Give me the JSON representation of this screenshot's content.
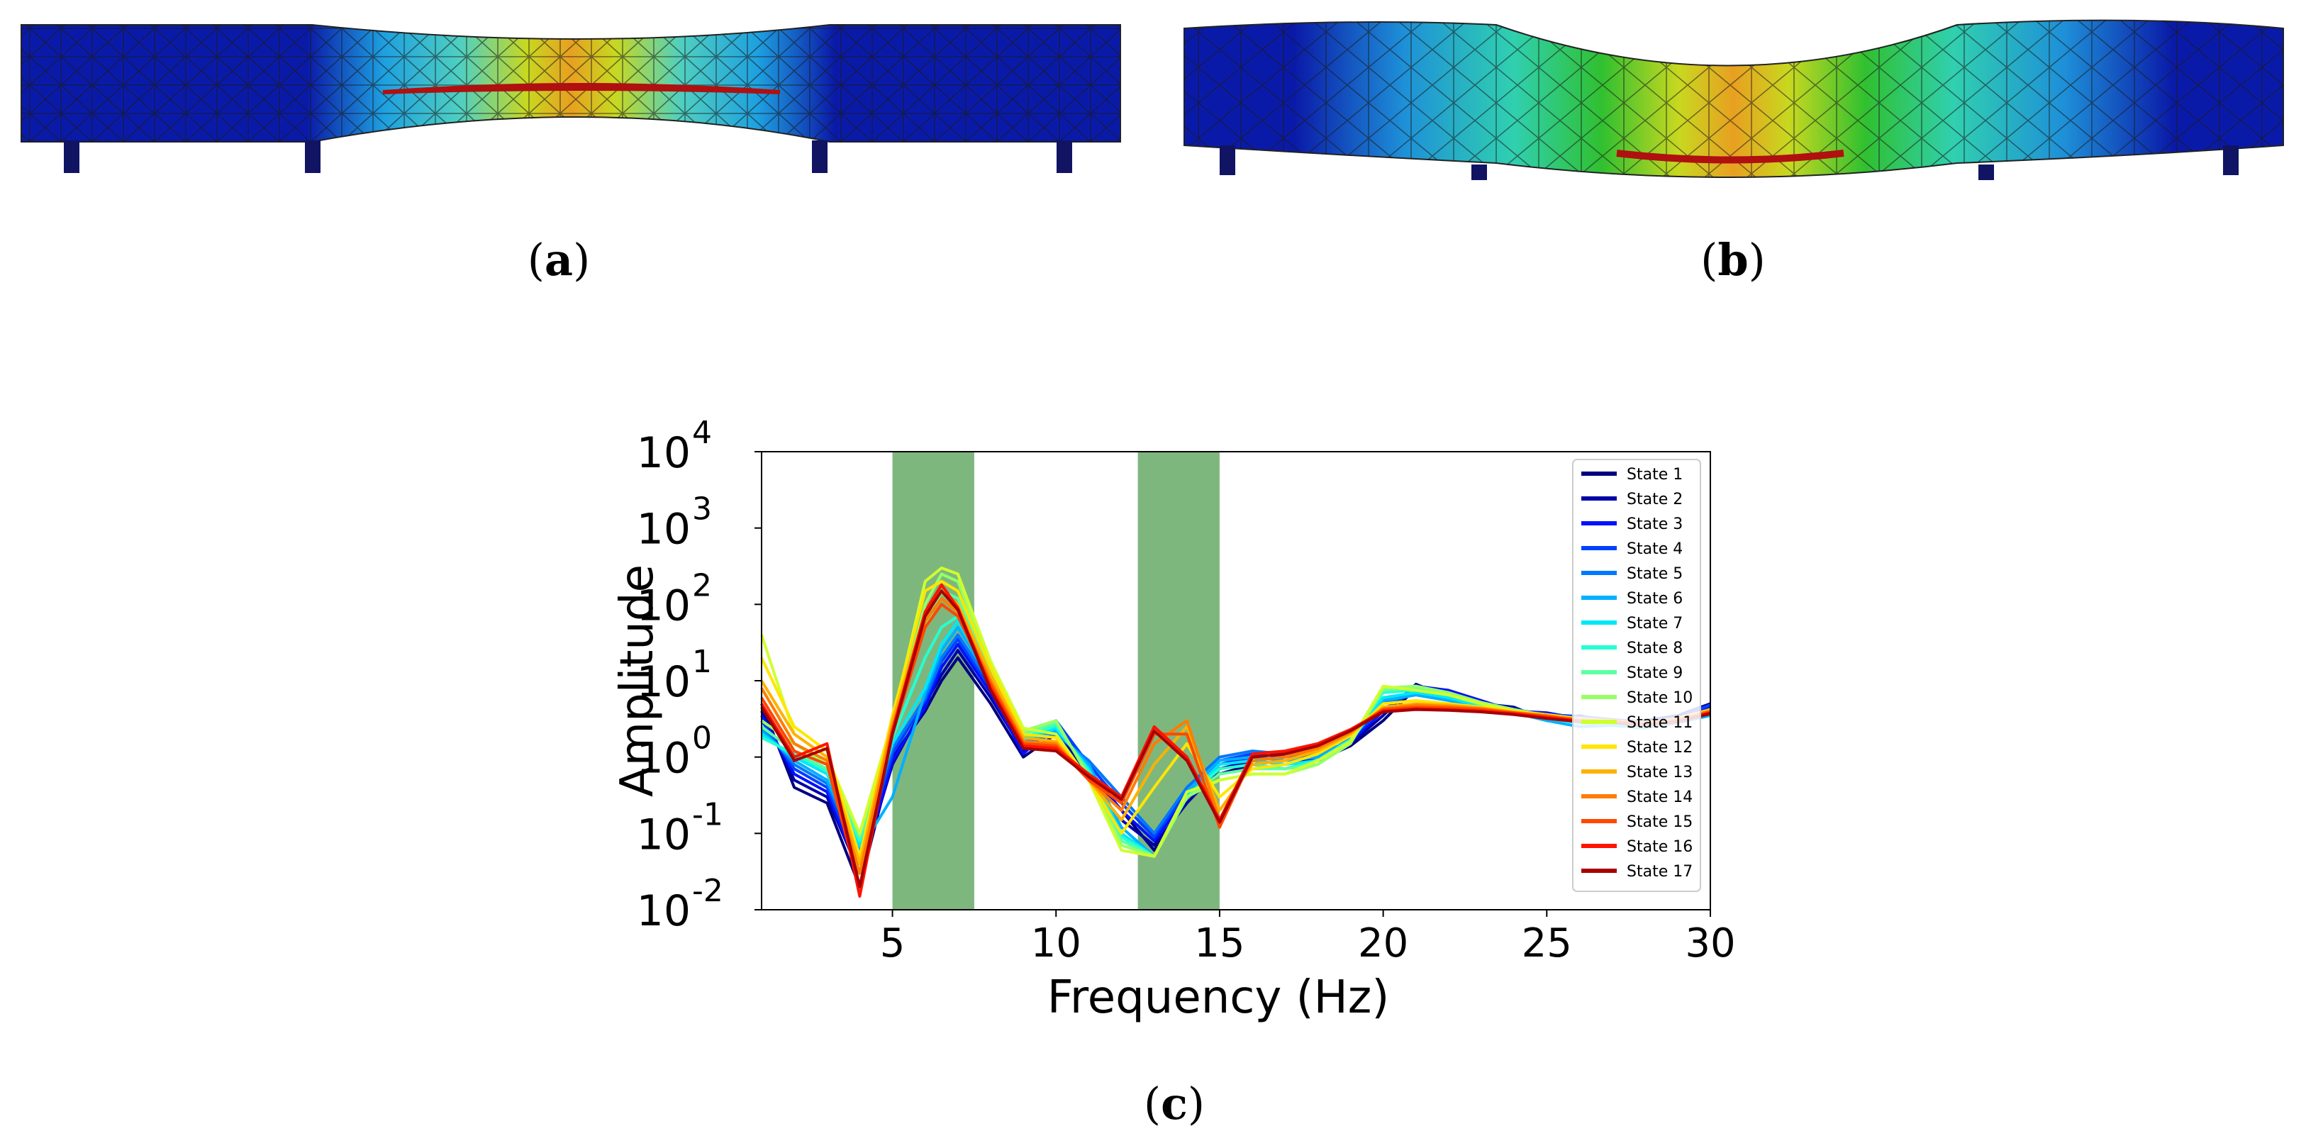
{
  "figure": {
    "panel_a_label_letter": "a",
    "panel_b_label_letter": "b",
    "panel_c_label_letter": "c",
    "open_paren": "(",
    "close_paren": ")"
  },
  "colors": {
    "beam_blue": "#0a1aa8",
    "support_navy": "#101463",
    "shade_green": "#2e8b2e",
    "mesh_line": "#1a1a1a"
  },
  "chart_data": {
    "type": "line",
    "xlabel": "Frequency (Hz)",
    "ylabel": "Amplitude",
    "y_scale": "log",
    "xlim": [
      1,
      30
    ],
    "ylim": [
      0.01,
      10000
    ],
    "xticks": [
      5,
      10,
      15,
      20,
      25,
      30
    ],
    "yticks": [
      {
        "value": 0.01,
        "base": "10",
        "exp": "-2"
      },
      {
        "value": 0.1,
        "base": "10",
        "exp": "-1"
      },
      {
        "value": 1,
        "base": "10",
        "exp": "0"
      },
      {
        "value": 10,
        "base": "10",
        "exp": "1"
      },
      {
        "value": 100,
        "base": "10",
        "exp": "2"
      },
      {
        "value": 1000,
        "base": "10",
        "exp": "3"
      },
      {
        "value": 10000,
        "base": "10",
        "exp": "4"
      }
    ],
    "shaded_bands": [
      [
        5,
        7.5
      ],
      [
        12.5,
        15
      ]
    ],
    "legend_position": "right",
    "x": [
      1,
      2,
      3,
      4,
      5,
      6,
      6.5,
      7,
      8,
      9,
      10,
      11,
      12,
      13,
      14,
      15,
      16,
      17,
      18,
      19,
      20,
      21,
      22,
      23,
      24,
      25,
      26,
      27,
      28,
      29,
      30
    ],
    "series": [
      {
        "name": "State 1",
        "color": "#00007f",
        "values": [
          5.0,
          0.4,
          0.25,
          0.02,
          1.0,
          4.0,
          10.0,
          20.0,
          5.0,
          1.0,
          2.0,
          0.6,
          0.2,
          0.06,
          0.3,
          0.6,
          0.8,
          0.7,
          0.9,
          1.4,
          3.0,
          8.0,
          7.0,
          5.0,
          4.0,
          3.5,
          3.0,
          3.0,
          2.5,
          3.0,
          4.0
        ]
      },
      {
        "name": "State 2",
        "color": "#0000a8",
        "values": [
          4.0,
          0.5,
          0.3,
          0.03,
          0.8,
          5.0,
          12.0,
          25.0,
          6.0,
          1.2,
          2.5,
          0.5,
          0.15,
          0.07,
          0.25,
          0.7,
          0.9,
          0.8,
          1.0,
          1.5,
          3.5,
          9.0,
          6.0,
          5.0,
          4.5,
          3.0,
          3.5,
          2.8,
          3.0,
          3.5,
          5.0
        ]
      },
      {
        "name": "State 3",
        "color": "#0010ff",
        "values": [
          3.5,
          0.6,
          0.35,
          0.03,
          0.9,
          4.5,
          15.0,
          30.0,
          7.0,
          1.1,
          2.8,
          0.7,
          0.2,
          0.08,
          0.3,
          0.8,
          1.0,
          0.9,
          1.1,
          1.6,
          4.0,
          8.5,
          7.5,
          5.5,
          4.0,
          3.8,
          3.2,
          3.0,
          2.7,
          3.2,
          4.5
        ]
      },
      {
        "name": "State 4",
        "color": "#0040ff",
        "values": [
          3.0,
          0.7,
          0.4,
          0.04,
          1.1,
          5.5,
          18.0,
          35.0,
          8.0,
          1.3,
          3.0,
          0.8,
          0.25,
          0.09,
          0.35,
          0.9,
          1.1,
          1.0,
          1.2,
          1.8,
          4.2,
          7.5,
          6.5,
          5.0,
          4.2,
          3.6,
          3.4,
          3.1,
          2.9,
          3.3,
          4.8
        ]
      },
      {
        "name": "State 5",
        "color": "#0078ff",
        "values": [
          2.5,
          0.8,
          0.45,
          0.05,
          1.3,
          6.0,
          20.0,
          40.0,
          9.0,
          1.5,
          2.0,
          0.9,
          0.3,
          0.1,
          0.4,
          1.0,
          1.2,
          1.1,
          1.3,
          2.0,
          5.0,
          7.0,
          6.0,
          4.8,
          4.0,
          3.5,
          3.0,
          2.9,
          2.6,
          3.0,
          4.2
        ]
      },
      {
        "name": "State 6",
        "color": "#00b0ff",
        "values": [
          2.2,
          0.9,
          0.5,
          0.06,
          0.3,
          7.0,
          25.0,
          50.0,
          10.0,
          1.6,
          2.2,
          0.8,
          0.12,
          0.05,
          0.35,
          0.9,
          1.0,
          0.9,
          1.0,
          1.7,
          5.5,
          6.5,
          5.5,
          4.5,
          3.8,
          3.0,
          2.5,
          2.6,
          2.4,
          2.8,
          3.5
        ]
      },
      {
        "name": "State 7",
        "color": "#00e8f6",
        "values": [
          2.0,
          1.0,
          0.6,
          0.07,
          1.5,
          8.0,
          30.0,
          60.0,
          11.0,
          1.7,
          2.4,
          0.7,
          0.1,
          0.05,
          0.3,
          0.8,
          0.9,
          0.8,
          0.9,
          1.6,
          6.0,
          7.0,
          6.0,
          4.6,
          3.9,
          3.2,
          2.8,
          2.7,
          2.5,
          2.9,
          3.8
        ]
      },
      {
        "name": "State 8",
        "color": "#26ffd0",
        "values": [
          1.8,
          1.1,
          0.65,
          0.08,
          1.8,
          20.0,
          50.0,
          70.0,
          12.0,
          1.8,
          2.6,
          0.65,
          0.09,
          0.05,
          0.3,
          0.7,
          0.8,
          0.7,
          0.9,
          1.7,
          7.0,
          7.5,
          6.5,
          4.8,
          4.0,
          3.3,
          2.9,
          2.8,
          2.6,
          3.0,
          3.9
        ]
      },
      {
        "name": "State 9",
        "color": "#5effa0",
        "values": [
          2.5,
          1.2,
          0.7,
          0.09,
          2.0,
          50.0,
          150.0,
          120.0,
          14.0,
          2.0,
          2.8,
          0.6,
          0.08,
          0.05,
          0.3,
          0.6,
          0.7,
          0.7,
          0.8,
          1.6,
          7.5,
          8.0,
          6.8,
          5.0,
          4.1,
          3.4,
          3.0,
          2.9,
          2.7,
          3.1,
          4.0
        ]
      },
      {
        "name": "State 10",
        "color": "#97ff66",
        "values": [
          3.0,
          1.5,
          0.8,
          0.1,
          2.5,
          100.0,
          250.0,
          200.0,
          16.0,
          2.2,
          3.0,
          0.55,
          0.07,
          0.05,
          0.3,
          0.5,
          0.6,
          0.6,
          0.8,
          1.5,
          8.0,
          8.5,
          7.0,
          5.2,
          4.2,
          3.5,
          3.1,
          3.0,
          2.8,
          3.2,
          4.1
        ]
      },
      {
        "name": "State 11",
        "color": "#d0ff2e",
        "values": [
          40.0,
          2.0,
          1.0,
          0.1,
          3.0,
          200.0,
          300.0,
          250.0,
          18.0,
          2.4,
          2.0,
          0.5,
          0.06,
          0.05,
          0.35,
          0.5,
          0.6,
          0.6,
          0.9,
          1.6,
          8.5,
          7.5,
          6.5,
          5.0,
          4.0,
          3.4,
          3.0,
          2.9,
          2.7,
          3.1,
          4.0
        ]
      },
      {
        "name": "State 12",
        "color": "#ffe600",
        "values": [
          20.0,
          2.5,
          1.2,
          0.05,
          3.5,
          150.0,
          200.0,
          150.0,
          15.0,
          2.0,
          1.8,
          0.5,
          0.1,
          0.4,
          1.5,
          0.3,
          0.7,
          0.8,
          1.1,
          1.9,
          5.0,
          5.5,
          5.0,
          4.5,
          4.0,
          3.6,
          3.2,
          3.0,
          2.8,
          3.2,
          4.2
        ]
      },
      {
        "name": "State 13",
        "color": "#ffb100",
        "values": [
          10.0,
          2.0,
          1.0,
          0.04,
          3.0,
          80.0,
          150.0,
          100.0,
          12.0,
          1.8,
          1.6,
          0.5,
          0.15,
          0.8,
          2.5,
          0.2,
          0.8,
          0.9,
          1.2,
          2.0,
          4.5,
          5.0,
          4.8,
          4.4,
          3.9,
          3.5,
          3.1,
          3.0,
          2.8,
          3.1,
          4.1
        ]
      },
      {
        "name": "State 14",
        "color": "#ff7d00",
        "values": [
          8.0,
          1.5,
          0.9,
          0.03,
          2.5,
          60.0,
          120.0,
          80.0,
          10.0,
          1.6,
          1.5,
          0.5,
          0.2,
          1.5,
          3.0,
          0.15,
          0.9,
          1.0,
          1.3,
          2.1,
          4.3,
          4.8,
          4.6,
          4.3,
          3.8,
          3.5,
          3.1,
          3.0,
          2.8,
          3.1,
          4.0
        ]
      },
      {
        "name": "State 15",
        "color": "#ff4800",
        "values": [
          6.0,
          1.2,
          0.8,
          0.02,
          2.0,
          50.0,
          100.0,
          70.0,
          9.0,
          1.5,
          1.4,
          0.5,
          0.25,
          2.0,
          2.0,
          0.12,
          1.0,
          1.1,
          1.4,
          2.2,
          4.2,
          4.5,
          4.4,
          4.2,
          3.8,
          3.4,
          3.0,
          2.9,
          2.7,
          3.0,
          3.9
        ]
      },
      {
        "name": "State 16",
        "color": "#ff1300",
        "values": [
          5.0,
          1.0,
          1.5,
          0.015,
          2.2,
          80.0,
          180.0,
          90.0,
          8.0,
          1.4,
          1.3,
          0.6,
          0.3,
          2.5,
          1.0,
          0.15,
          1.1,
          1.2,
          1.5,
          2.3,
          4.0,
          4.3,
          4.2,
          4.0,
          3.7,
          3.3,
          3.0,
          2.9,
          2.7,
          3.0,
          3.8
        ]
      },
      {
        "name": "State 17",
        "color": "#a70000",
        "values": [
          4.5,
          0.9,
          1.3,
          0.02,
          2.0,
          70.0,
          150.0,
          85.0,
          7.5,
          1.3,
          1.2,
          0.55,
          0.28,
          2.2,
          0.9,
          0.14,
          1.0,
          1.1,
          1.4,
          2.2,
          3.9,
          4.2,
          4.1,
          3.9,
          3.6,
          3.2,
          2.9,
          2.8,
          2.6,
          2.9,
          3.7
        ]
      }
    ]
  }
}
